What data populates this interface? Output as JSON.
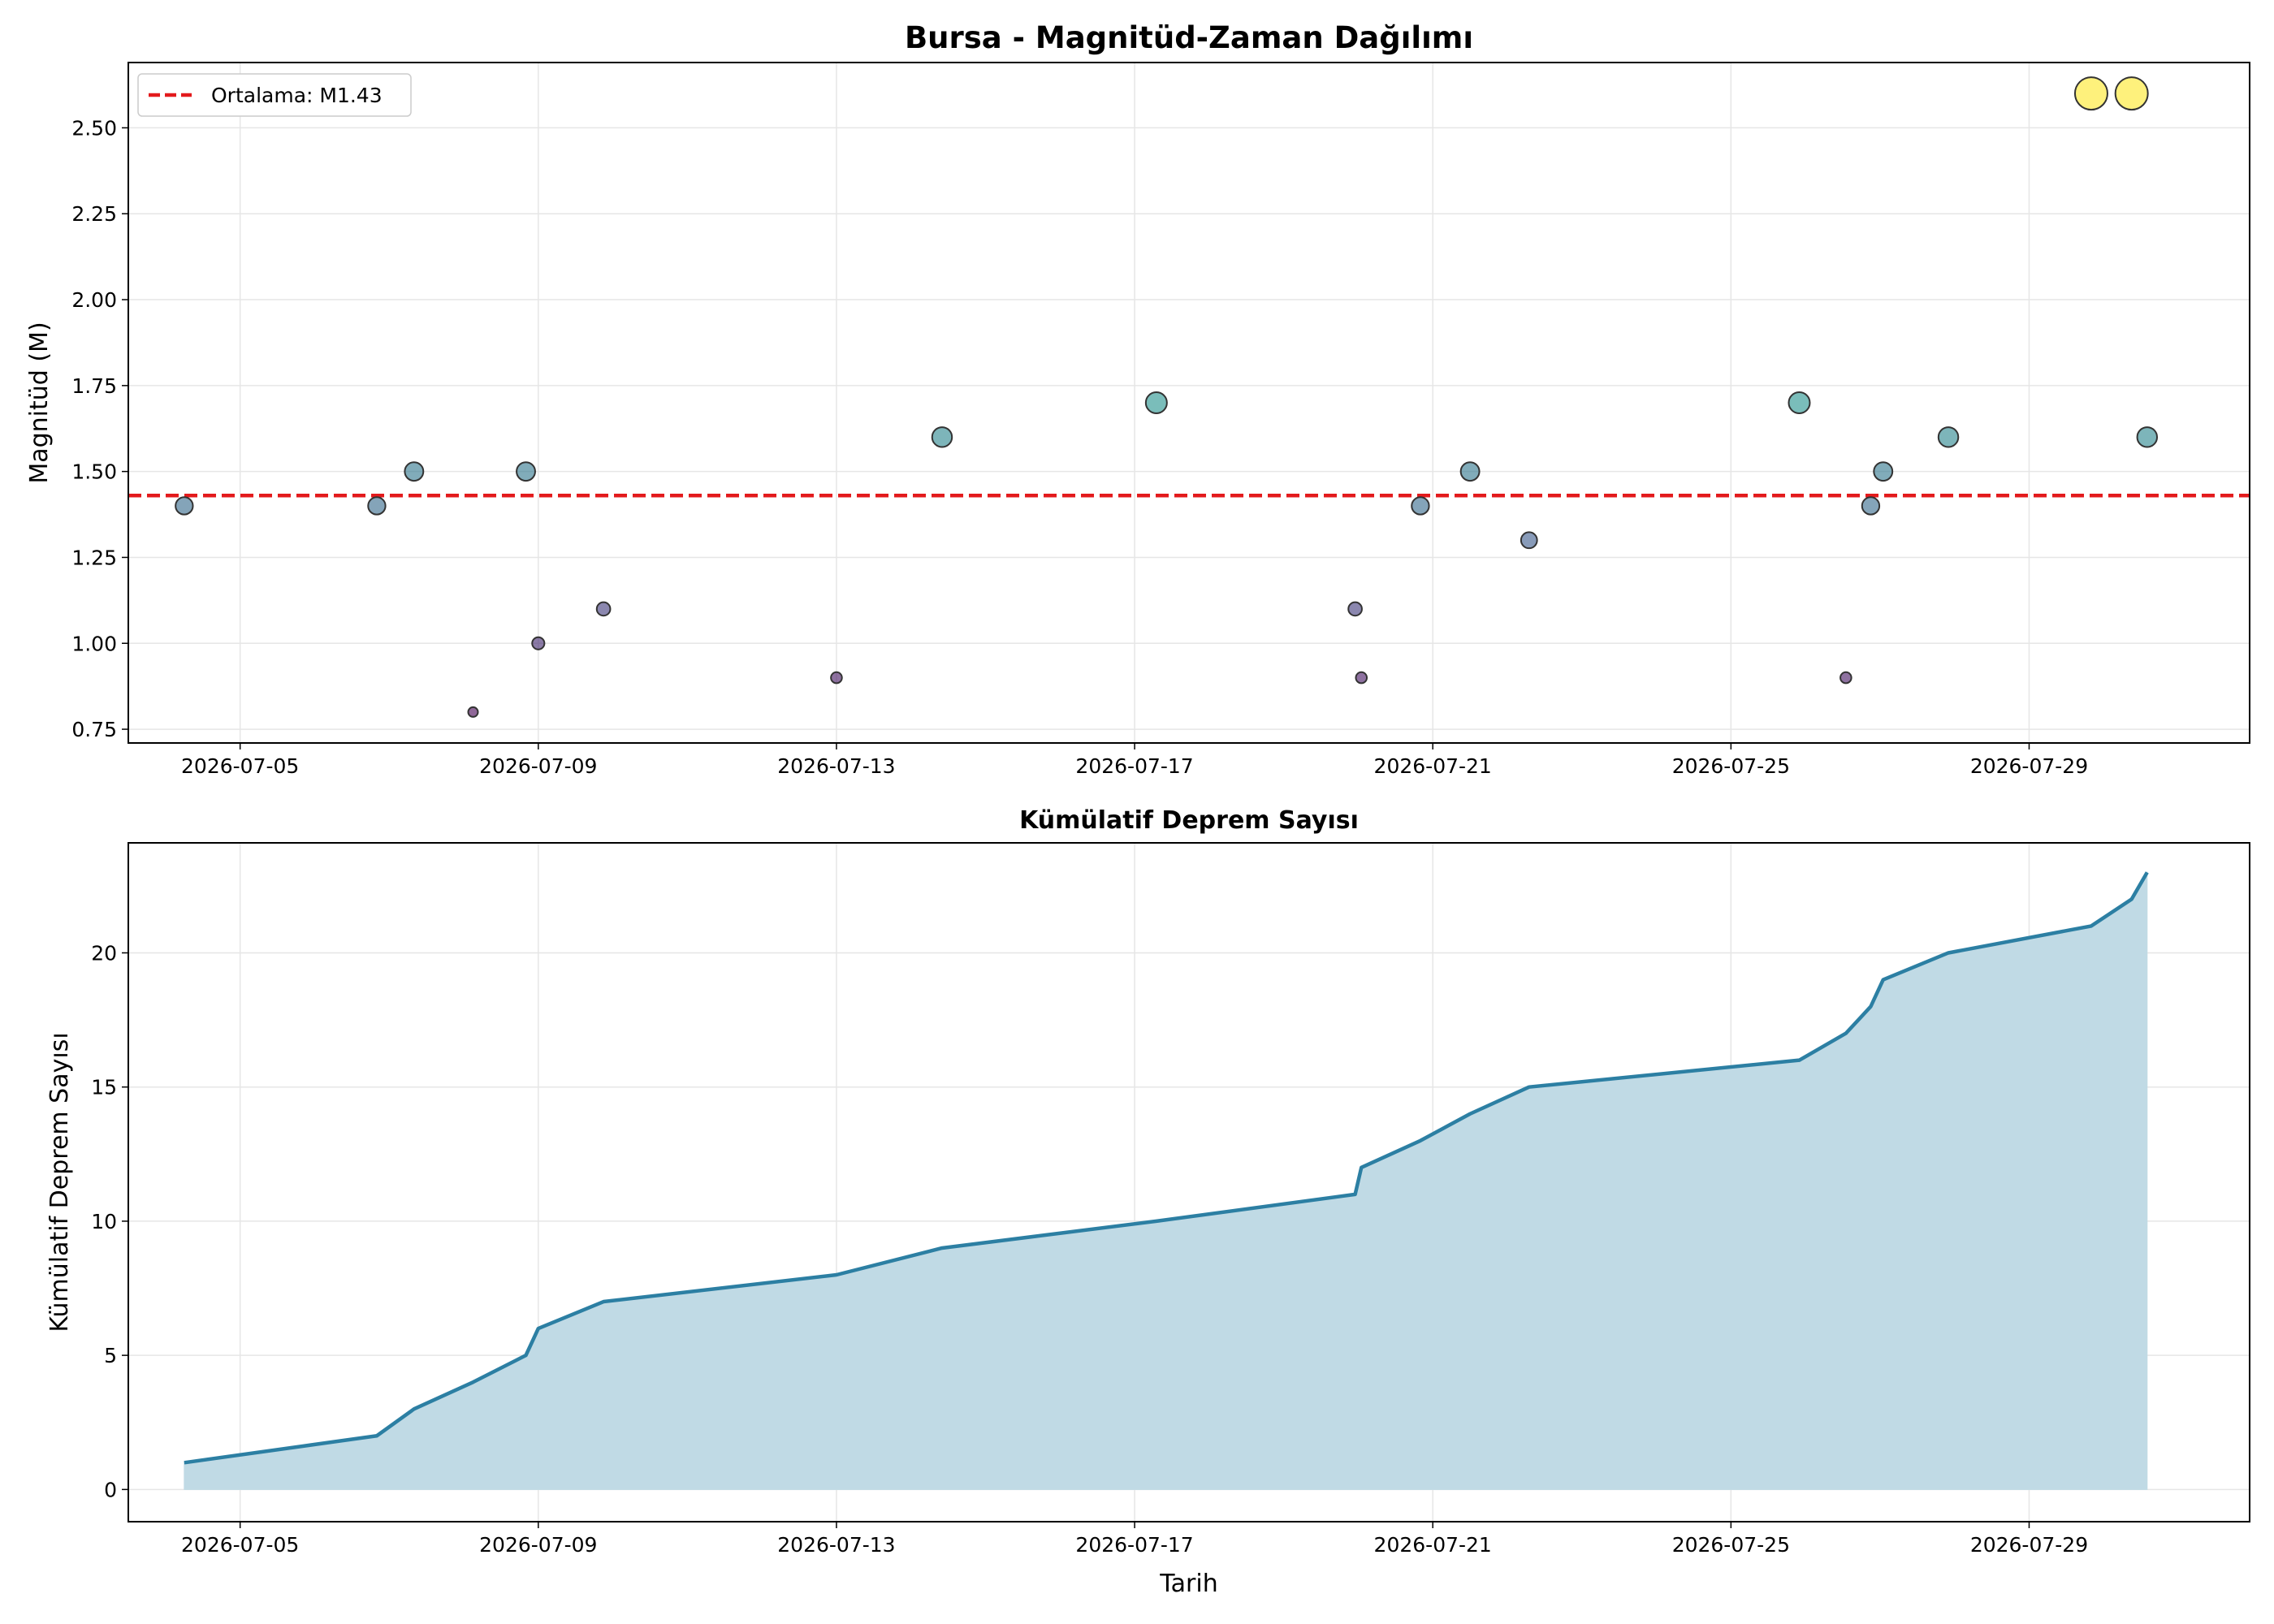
{
  "chart_data": [
    {
      "type": "scatter",
      "title": "Bursa - Magnitüd-Zaman Dağılımı",
      "xlabel": "",
      "ylabel": "Magnitüd (M)",
      "xlim": [
        "2026-07-03 12:00",
        "2026-07-31 23:00"
      ],
      "ylim": [
        0.71,
        2.69
      ],
      "xticks": [
        "2026-07-05",
        "2026-07-09",
        "2026-07-13",
        "2026-07-17",
        "2026-07-21",
        "2026-07-25",
        "2026-07-29"
      ],
      "yticks": [
        "0.75",
        "1.00",
        "1.25",
        "1.50",
        "1.75",
        "2.00",
        "2.25",
        "2.50"
      ],
      "grid": true,
      "legend": {
        "placement": "top-left",
        "entries": [
          "Ortalama: M1.43"
        ]
      },
      "mean_line": {
        "label": "Ortalama: M1.43",
        "value": 1.43,
        "color": "#e31a1c",
        "style": "dashed"
      },
      "colormap": "viridis",
      "points": [
        {
          "x": "2026-07-04 06:00",
          "y": 1.4
        },
        {
          "x": "2026-07-06 20:00",
          "y": 1.4
        },
        {
          "x": "2026-07-07 08:00",
          "y": 1.5
        },
        {
          "x": "2026-07-08 03:00",
          "y": 0.8
        },
        {
          "x": "2026-07-08 20:00",
          "y": 1.5
        },
        {
          "x": "2026-07-09 00:00",
          "y": 1.0
        },
        {
          "x": "2026-07-09 21:00",
          "y": 1.1
        },
        {
          "x": "2026-07-13 00:00",
          "y": 0.9
        },
        {
          "x": "2026-07-14 10:00",
          "y": 1.6
        },
        {
          "x": "2026-07-17 07:00",
          "y": 1.7
        },
        {
          "x": "2026-07-19 23:00",
          "y": 1.1
        },
        {
          "x": "2026-07-20 01:00",
          "y": 0.9
        },
        {
          "x": "2026-07-20 20:00",
          "y": 1.4
        },
        {
          "x": "2026-07-21 12:00",
          "y": 1.5
        },
        {
          "x": "2026-07-22 07:00",
          "y": 1.3
        },
        {
          "x": "2026-07-25 22:00",
          "y": 1.7
        },
        {
          "x": "2026-07-26 13:00",
          "y": 0.9
        },
        {
          "x": "2026-07-26 21:00",
          "y": 1.4
        },
        {
          "x": "2026-07-27 01:00",
          "y": 1.5
        },
        {
          "x": "2026-07-27 22:00",
          "y": 1.6
        },
        {
          "x": "2026-07-29 20:00",
          "y": 2.6
        },
        {
          "x": "2026-07-30 09:00",
          "y": 2.6
        },
        {
          "x": "2026-07-30 14:00",
          "y": 1.6
        }
      ]
    },
    {
      "type": "area",
      "title": "Kümülatif Deprem Sayısı",
      "xlabel": "Tarih",
      "ylabel": "Kümülatif Deprem Sayısı",
      "xlim": [
        "2026-07-03 12:00",
        "2026-07-31 23:00"
      ],
      "ylim": [
        -1.2,
        24.1
      ],
      "xticks": [
        "2026-07-05",
        "2026-07-09",
        "2026-07-13",
        "2026-07-17",
        "2026-07-21",
        "2026-07-25",
        "2026-07-29"
      ],
      "yticks": [
        "0",
        "5",
        "10",
        "15",
        "20"
      ],
      "grid": true,
      "line_color": "#2c7fa3",
      "fill_color": "#c0dae5",
      "x": [
        "2026-07-04 06:00",
        "2026-07-06 20:00",
        "2026-07-07 08:00",
        "2026-07-08 03:00",
        "2026-07-08 20:00",
        "2026-07-09 00:00",
        "2026-07-09 21:00",
        "2026-07-13 00:00",
        "2026-07-14 10:00",
        "2026-07-17 07:00",
        "2026-07-19 23:00",
        "2026-07-20 01:00",
        "2026-07-20 20:00",
        "2026-07-21 12:00",
        "2026-07-22 07:00",
        "2026-07-25 22:00",
        "2026-07-26 13:00",
        "2026-07-26 21:00",
        "2026-07-27 01:00",
        "2026-07-27 22:00",
        "2026-07-29 20:00",
        "2026-07-30 09:00",
        "2026-07-30 14:00"
      ],
      "values": [
        1,
        2,
        3,
        4,
        5,
        6,
        7,
        8,
        9,
        10,
        11,
        12,
        13,
        14,
        15,
        16,
        17,
        18,
        19,
        20,
        21,
        22,
        23
      ]
    }
  ]
}
